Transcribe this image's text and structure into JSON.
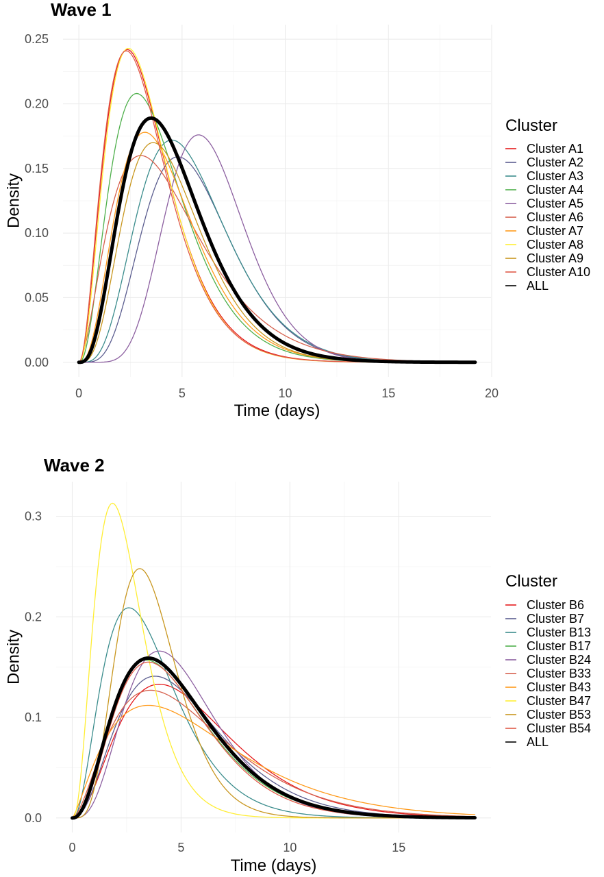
{
  "chart_data": [
    {
      "type": "line",
      "title": "Wave 1",
      "xlabel": "Time (days)",
      "ylabel": "Density",
      "xlim": [
        0,
        19.2
      ],
      "ylim": [
        0,
        0.25
      ],
      "xticks": [
        0,
        5,
        10,
        15,
        20
      ],
      "xtick_labels": [
        "0",
        "5",
        "10",
        "15",
        "20"
      ],
      "yticks": [
        0,
        0.05,
        0.1,
        0.15,
        0.2,
        0.25
      ],
      "ytick_labels": [
        "0.00",
        "0.05",
        "0.10",
        "0.15",
        "0.20",
        "0.25"
      ],
      "grid": true,
      "legend_title": "Cluster",
      "legend_position": "right",
      "series": [
        {
          "name": "Cluster A1",
          "color": "#e41a1c",
          "width": 1.3,
          "peak_x": 2.35,
          "peak_y": 0.242,
          "mean": 3.4
        },
        {
          "name": "Cluster A2",
          "color": "#5b5d8f",
          "width": 1.3,
          "peak_x": 4.8,
          "peak_y": 0.159,
          "mean": 5.75
        },
        {
          "name": "Cluster A3",
          "color": "#3a8c8c",
          "width": 1.3,
          "peak_x": 4.5,
          "peak_y": 0.172,
          "mean": 5.55
        },
        {
          "name": "Cluster A4",
          "color": "#4daf4a",
          "width": 1.3,
          "peak_x": 2.8,
          "peak_y": 0.208,
          "mean": 3.95
        },
        {
          "name": "Cluster A5",
          "color": "#8c5fa0",
          "width": 1.3,
          "peak_x": 5.8,
          "peak_y": 0.176,
          "mean": 6.45
        },
        {
          "name": "Cluster A6",
          "color": "#d6604d",
          "width": 1.3,
          "peak_x": 3.0,
          "peak_y": 0.16,
          "mean": 4.65
        },
        {
          "name": "Cluster A7",
          "color": "#ff9a1a",
          "width": 1.3,
          "peak_x": 3.2,
          "peak_y": 0.178,
          "mean": 4.3
        },
        {
          "name": "Cluster A8",
          "color": "#ffee33",
          "width": 1.3,
          "peak_x": 2.4,
          "peak_y": 0.243,
          "mean": 3.4
        },
        {
          "name": "Cluster A9",
          "color": "#c8961e",
          "width": 1.3,
          "peak_x": 3.6,
          "peak_y": 0.17,
          "mean": 4.6
        },
        {
          "name": "Cluster A10",
          "color": "#e05a48",
          "width": 1.3,
          "peak_x": 2.3,
          "peak_y": 0.241,
          "mean": 3.35
        },
        {
          "name": "ALL",
          "color": "#000000",
          "width": 5,
          "peak_x": 3.5,
          "peak_y": 0.189,
          "mean": 4.6
        }
      ]
    },
    {
      "type": "line",
      "title": "Wave 2",
      "xlabel": "Time (days)",
      "ylabel": "Density",
      "xlim": [
        0,
        18.5
      ],
      "ylim": [
        0,
        0.32
      ],
      "xticks": [
        0,
        5,
        10,
        15
      ],
      "xtick_labels": [
        "0",
        "5",
        "10",
        "15"
      ],
      "yticks": [
        0,
        0.1,
        0.2,
        0.3
      ],
      "ytick_labels": [
        "0.0",
        "0.1",
        "0.2",
        "0.3"
      ],
      "grid": true,
      "legend_title": "Cluster",
      "legend_position": "right",
      "series": [
        {
          "name": "Cluster B6",
          "color": "#e41a1c",
          "width": 1.3,
          "peak_x": 4.0,
          "peak_y": 0.133,
          "mean": 5.7
        },
        {
          "name": "Cluster B7",
          "color": "#5b5d8f",
          "width": 1.3,
          "peak_x": 3.8,
          "peak_y": 0.141,
          "mean": 5.3
        },
        {
          "name": "Cluster B13",
          "color": "#3a8c8c",
          "width": 1.3,
          "peak_x": 2.6,
          "peak_y": 0.209,
          "mean": 3.7
        },
        {
          "name": "Cluster B17",
          "color": "#4daf4a",
          "width": 1.3,
          "peak_x": 3.4,
          "peak_y": 0.157,
          "mean": 4.8
        },
        {
          "name": "Cluster B24",
          "color": "#8c5fa0",
          "width": 1.3,
          "peak_x": 4.0,
          "peak_y": 0.166,
          "mean": 5.1
        },
        {
          "name": "Cluster B33",
          "color": "#d6604d",
          "width": 1.3,
          "peak_x": 3.6,
          "peak_y": 0.127,
          "mean": 5.6
        },
        {
          "name": "Cluster B43",
          "color": "#ff9a1a",
          "width": 1.3,
          "peak_x": 3.5,
          "peak_y": 0.112,
          "mean": 6.1
        },
        {
          "name": "Cluster B47",
          "color": "#ffee33",
          "width": 1.3,
          "peak_x": 1.85,
          "peak_y": 0.313,
          "mean": 2.55
        },
        {
          "name": "Cluster B53",
          "color": "#c8961e",
          "width": 1.3,
          "peak_x": 3.1,
          "peak_y": 0.248,
          "mean": 3.75
        },
        {
          "name": "Cluster B54",
          "color": "#e05a48",
          "width": 1.3,
          "peak_x": 3.5,
          "peak_y": 0.155,
          "mean": 4.8
        },
        {
          "name": "ALL",
          "color": "#000000",
          "width": 5,
          "peak_x": 3.5,
          "peak_y": 0.159,
          "mean": 4.9
        }
      ]
    }
  ]
}
